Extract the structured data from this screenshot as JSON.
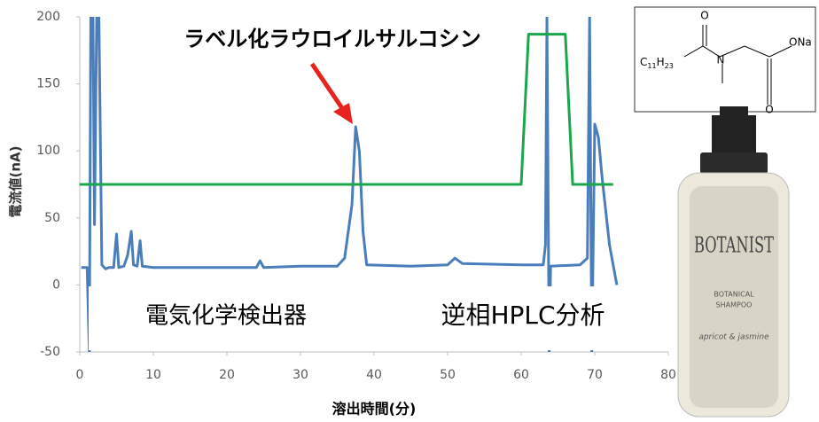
{
  "chart_data": {
    "type": "line",
    "y_label": "電流値(nA)",
    "x_label": "溶出時間(分)",
    "xlim": [
      0,
      80
    ],
    "xticks": [
      0,
      10,
      20,
      30,
      40,
      50,
      60,
      70,
      80
    ],
    "ylim": [
      -50,
      200
    ],
    "yticks": [
      -50,
      0,
      50,
      100,
      150,
      200
    ],
    "series": [
      {
        "color": "#4a7ebb",
        "x": [
          0.2,
          1,
          1.3,
          1.5,
          1.8,
          2.0,
          2.3,
          2.6,
          3.0,
          3.5,
          4,
          4.6,
          5,
          5.3,
          6,
          6.5,
          7,
          7.3,
          7.8,
          8.2,
          8.5,
          10,
          15,
          20,
          24,
          24.5,
          25,
          30,
          35,
          36,
          37,
          37.5,
          38,
          38.5,
          39,
          45,
          50,
          51,
          52,
          60,
          63,
          63.3,
          63.5,
          63.8,
          64,
          68,
          69,
          69.3,
          69.6,
          70,
          70.5,
          71,
          72,
          72.5,
          73
        ],
        "values": [
          13,
          13,
          -50,
          200,
          200,
          45,
          200,
          200,
          15,
          12,
          13,
          13,
          38,
          13,
          14,
          22,
          40,
          15,
          14,
          33,
          14,
          13,
          13,
          13,
          13,
          18,
          13,
          14,
          14,
          20,
          60,
          118,
          100,
          40,
          15,
          14,
          15,
          20,
          16,
          15,
          15,
          30,
          200,
          -50,
          14,
          15,
          20,
          200,
          -50,
          120,
          110,
          80,
          30,
          15,
          0
        ]
      },
      {
        "color": "#1aa64a",
        "x": [
          0,
          60,
          61,
          66,
          67,
          72.5
        ],
        "values": [
          75,
          75,
          187,
          187,
          75,
          75
        ]
      }
    ],
    "annotations": {
      "peak_label": "ラベル化ラウロイルサルコシン",
      "detector": "電気化学検出器",
      "method": "逆相HPLC分析"
    },
    "structure": {
      "oxygen": "O",
      "nitrogen": "N",
      "salt": "ONa",
      "oxygen2": "O",
      "chain": [
        "C",
        "11",
        "H",
        "23"
      ]
    },
    "bottle": {
      "brand": "BOTANIST",
      "line": "BOTANICAL",
      "product": "SHAMPOO",
      "scent": "apricot & jasmine"
    }
  }
}
